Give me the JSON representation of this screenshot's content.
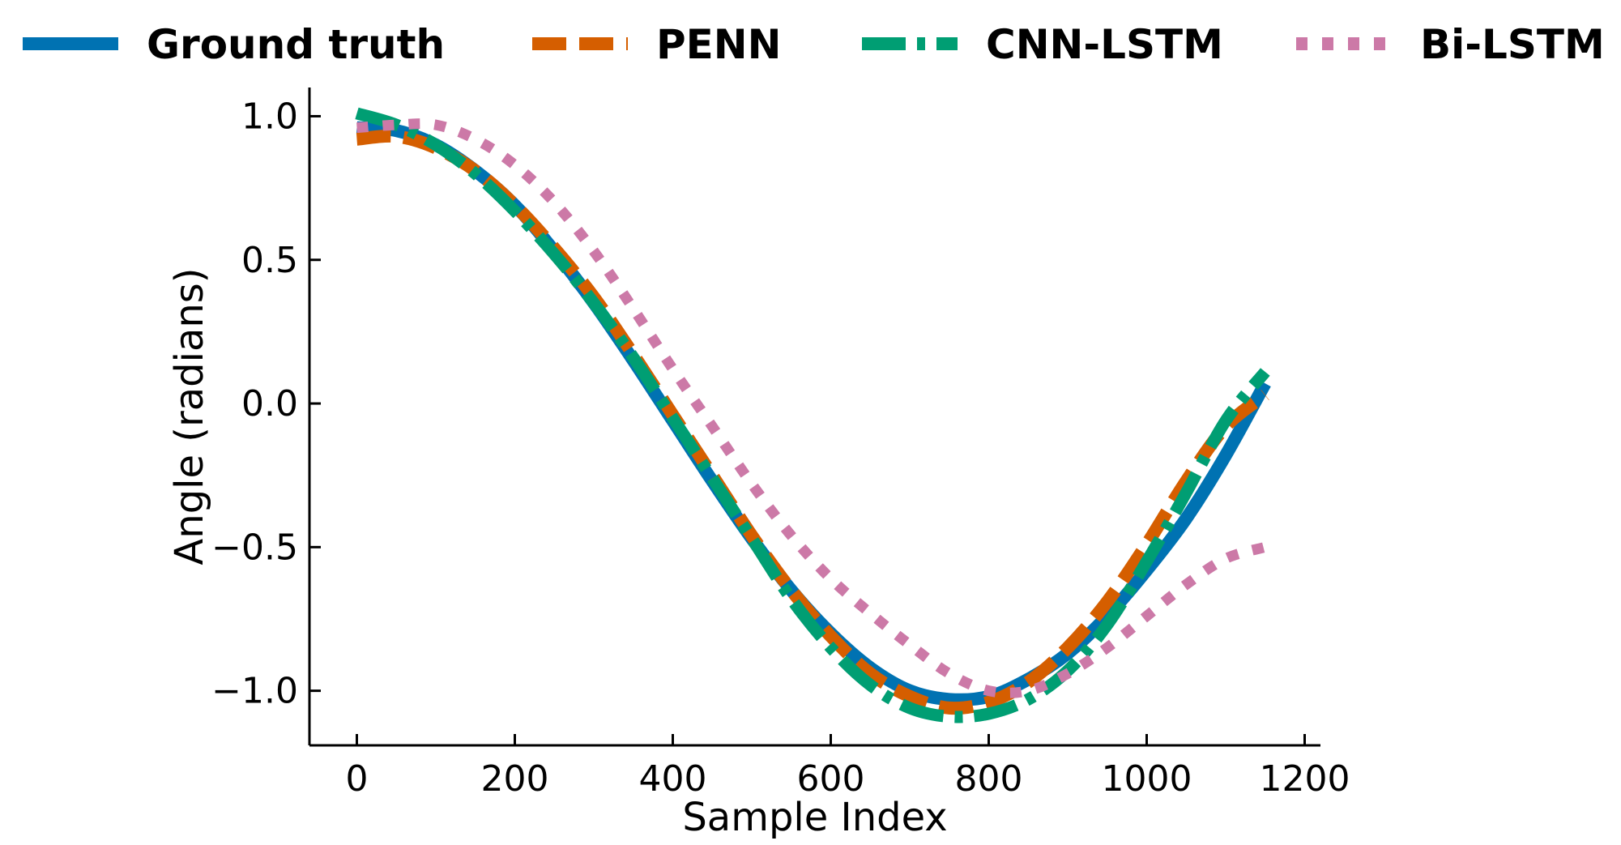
{
  "chart_data": {
    "type": "line",
    "title": "",
    "xlabel": "Sample Index",
    "ylabel": "Angle (radians)",
    "xlim": [
      -60,
      1220
    ],
    "ylim": [
      -1.19,
      1.1
    ],
    "xticks": [
      0,
      200,
      400,
      600,
      800,
      1000,
      1200
    ],
    "yticks": [
      1.0,
      0.5,
      0.0,
      -0.5,
      -1.0
    ],
    "xtick_labels": [
      "0",
      "200",
      "400",
      "600",
      "800",
      "1000",
      "1200"
    ],
    "ytick_labels": [
      "1.0",
      "0.5",
      "0.0",
      "−0.5",
      "−1.0"
    ],
    "grid": false,
    "legend_position": "top",
    "series": [
      {
        "name": "Ground truth",
        "color": "#0072B2",
        "style": "solid",
        "x": [
          0,
          50,
          100,
          150,
          200,
          250,
          300,
          350,
          400,
          450,
          500,
          550,
          600,
          650,
          700,
          750,
          800,
          850,
          900,
          950,
          1000,
          1050,
          1100,
          1150
        ],
        "y": [
          0.96,
          0.95,
          0.9,
          0.81,
          0.69,
          0.53,
          0.35,
          0.15,
          -0.06,
          -0.27,
          -0.47,
          -0.65,
          -0.8,
          -0.92,
          -1.0,
          -1.03,
          -1.02,
          -0.96,
          -0.87,
          -0.74,
          -0.58,
          -0.4,
          -0.18,
          0.07
        ]
      },
      {
        "name": "PENN",
        "color": "#D55E00",
        "style": "dashed",
        "x": [
          0,
          50,
          100,
          150,
          200,
          250,
          300,
          350,
          400,
          450,
          500,
          550,
          600,
          650,
          700,
          750,
          800,
          850,
          900,
          950,
          1000,
          1050,
          1100,
          1150
        ],
        "y": [
          0.92,
          0.93,
          0.89,
          0.81,
          0.69,
          0.54,
          0.37,
          0.17,
          -0.04,
          -0.25,
          -0.46,
          -0.65,
          -0.81,
          -0.94,
          -1.02,
          -1.06,
          -1.04,
          -0.97,
          -0.85,
          -0.69,
          -0.49,
          -0.27,
          -0.08,
          0.03
        ]
      },
      {
        "name": "CNN-LSTM",
        "color": "#009E73",
        "style": "dashdot",
        "x": [
          0,
          50,
          100,
          150,
          200,
          250,
          300,
          350,
          400,
          450,
          500,
          550,
          600,
          650,
          700,
          750,
          800,
          850,
          900,
          950,
          1000,
          1050,
          1100,
          1150
        ],
        "y": [
          1.01,
          0.97,
          0.9,
          0.8,
          0.67,
          0.52,
          0.35,
          0.16,
          -0.05,
          -0.26,
          -0.47,
          -0.68,
          -0.85,
          -0.98,
          -1.06,
          -1.09,
          -1.08,
          -1.03,
          -0.93,
          -0.77,
          -0.55,
          -0.31,
          -0.06,
          0.11
        ]
      },
      {
        "name": "Bi-LSTM",
        "color": "#CC79A7",
        "style": "dotted",
        "x": [
          0,
          50,
          100,
          150,
          200,
          250,
          300,
          350,
          400,
          450,
          500,
          550,
          600,
          650,
          700,
          750,
          800,
          850,
          900,
          950,
          1000,
          1050,
          1100,
          1150
        ],
        "y": [
          0.96,
          0.97,
          0.97,
          0.92,
          0.83,
          0.7,
          0.53,
          0.33,
          0.12,
          -0.08,
          -0.28,
          -0.46,
          -0.61,
          -0.73,
          -0.84,
          -0.94,
          -1.0,
          -1.0,
          -0.94,
          -0.85,
          -0.74,
          -0.63,
          -0.54,
          -0.5
        ]
      }
    ]
  }
}
